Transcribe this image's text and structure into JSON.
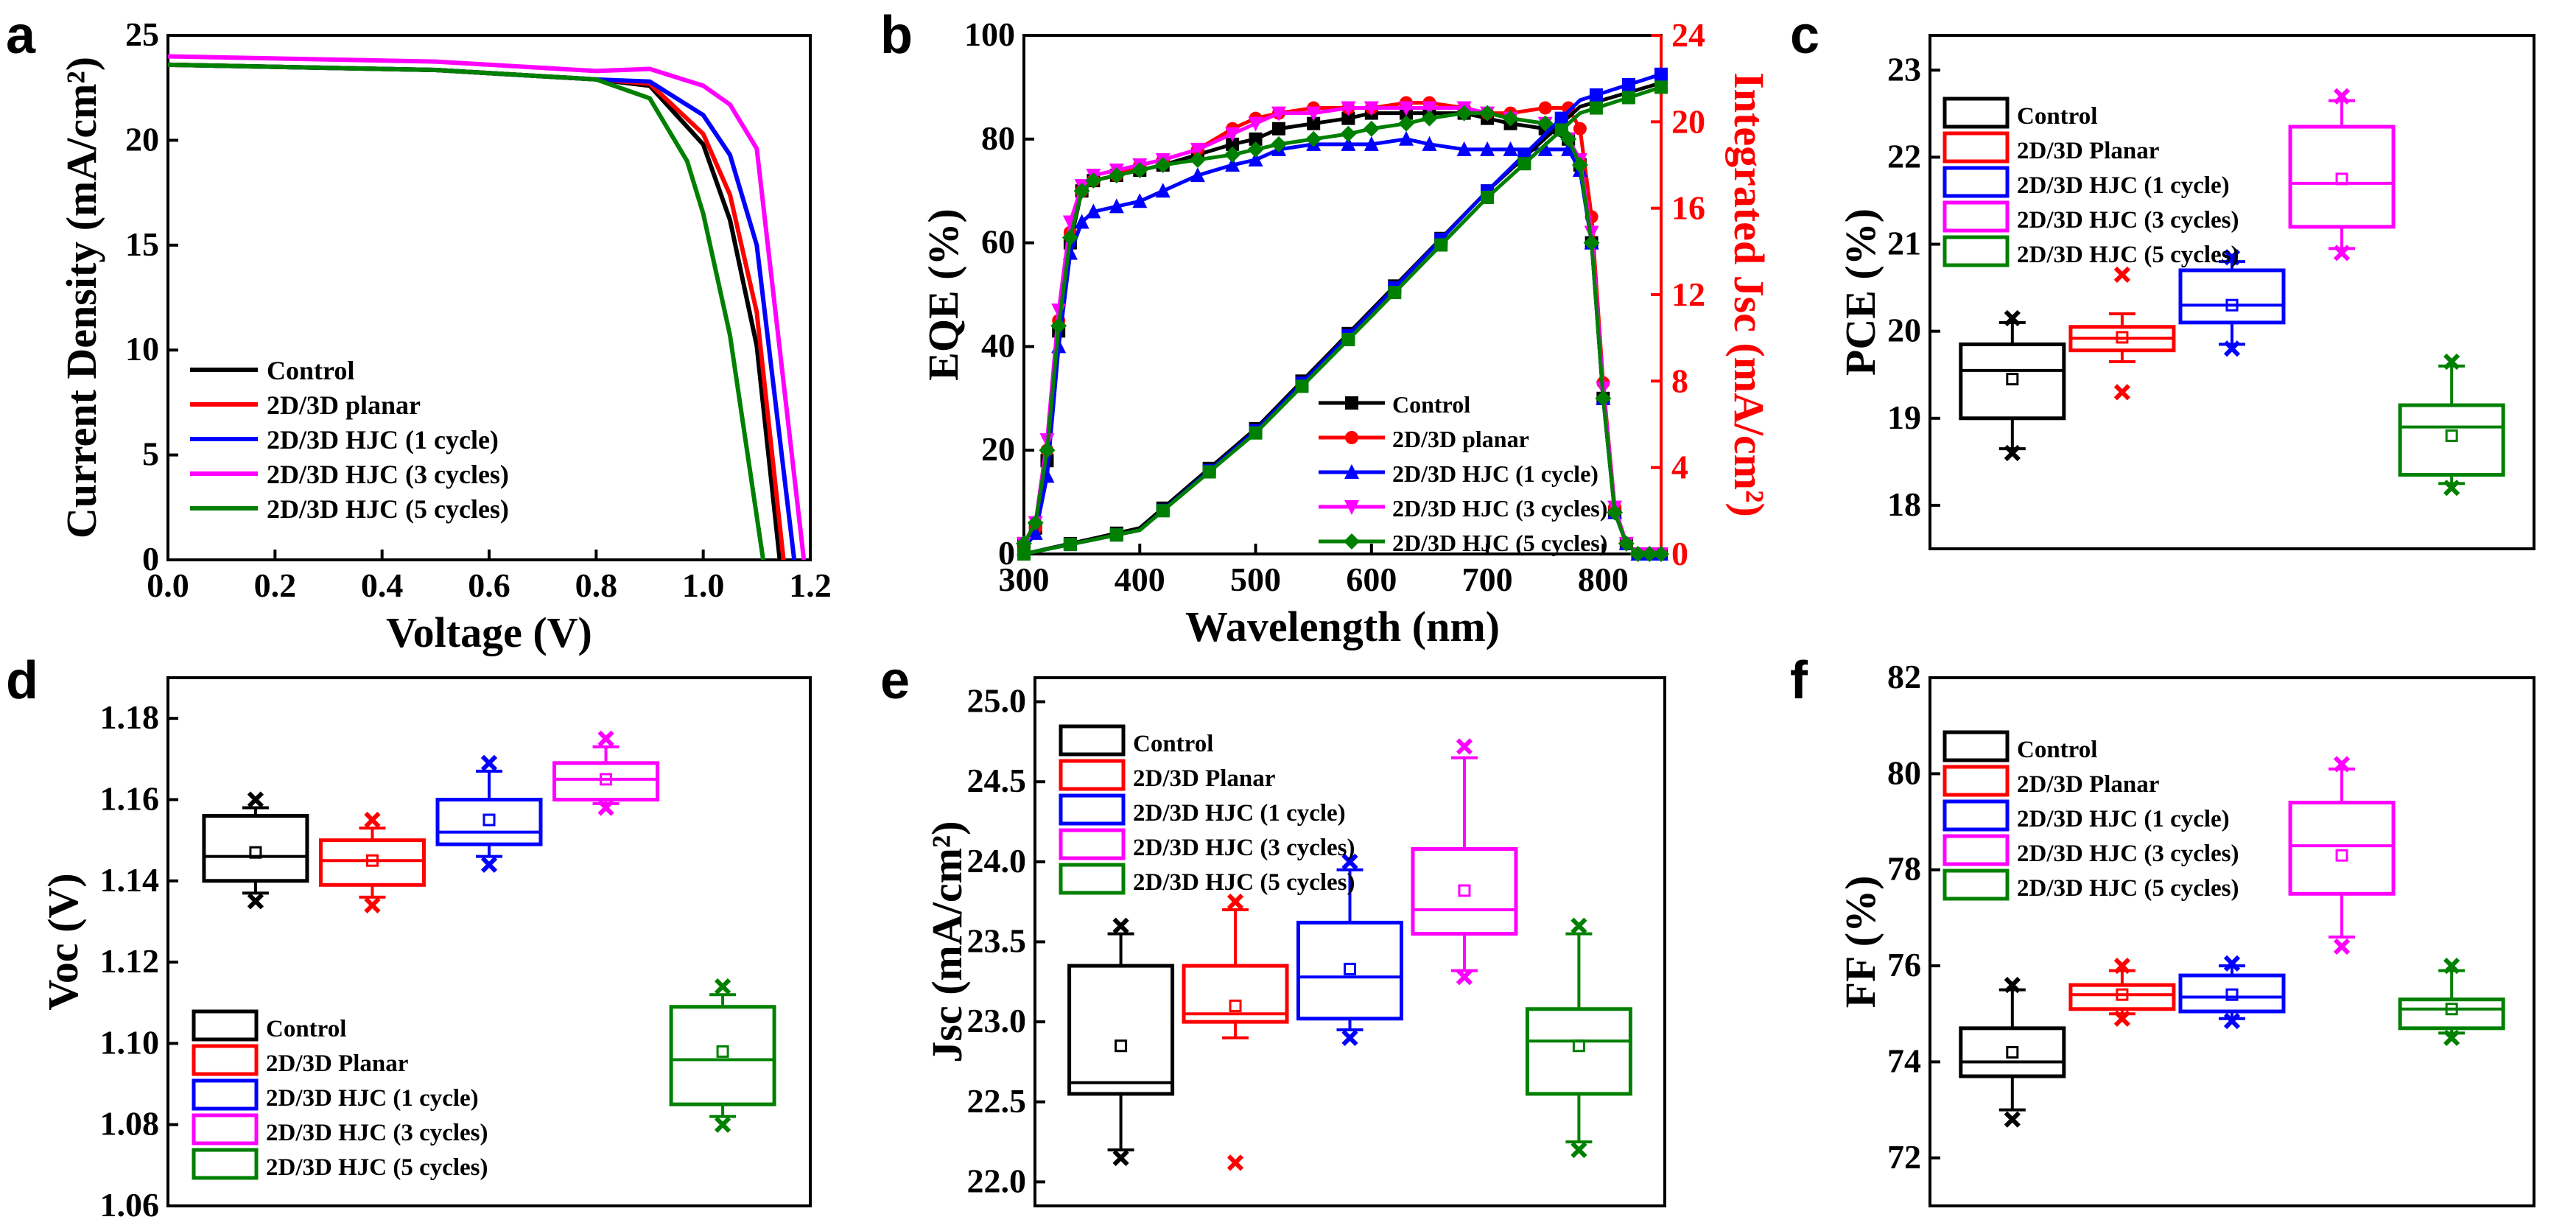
{
  "colors": {
    "Control": "#000000",
    "2D/3D planar": "#ff0000",
    "2D/3D HJC (1 cycle)": "#0000ff",
    "2D/3D HJC (3 cycles)": "#ff00ff",
    "2D/3D HJC (5 cycles)": "#008000",
    "integrated_axis": "#ff0000"
  },
  "chart_data": [
    {
      "panel": "a",
      "type": "line",
      "xlabel": "Voltage (V)",
      "ylabel": "Current Density (mA/cm²)",
      "xlim": [
        0,
        1.2
      ],
      "ylim": [
        0,
        25
      ],
      "xticks": [
        "0.0",
        "0.2",
        "0.4",
        "0.6",
        "0.8",
        "1.0",
        "1.2"
      ],
      "yticks": [
        "0",
        "5",
        "10",
        "15",
        "20",
        "25"
      ],
      "legend": [
        "Control",
        "2D/3D planar",
        "2D/3D HJC (1 cycle)",
        "2D/3D HJC (3 cycles)",
        "2D/3D HJC (5 cycles)"
      ],
      "series": [
        {
          "name": "Control",
          "jsc": 23.6,
          "voc": 1.143,
          "knee": [
            [
              0.9,
              22.6
            ],
            [
              1.0,
              19.8
            ],
            [
              1.05,
              16.2
            ],
            [
              1.1,
              10.2
            ]
          ]
        },
        {
          "name": "2D/3D planar",
          "jsc": 23.6,
          "voc": 1.15,
          "knee": [
            [
              0.9,
              22.7
            ],
            [
              1.0,
              20.3
            ],
            [
              1.05,
              17.4
            ],
            [
              1.1,
              11.8
            ]
          ]
        },
        {
          "name": "2D/3D HJC (1 cycle)",
          "jsc": 23.6,
          "voc": 1.17,
          "knee": [
            [
              0.9,
              22.8
            ],
            [
              1.0,
              21.2
            ],
            [
              1.05,
              19.3
            ],
            [
              1.1,
              15.0
            ]
          ]
        },
        {
          "name": "2D/3D HJC (3 cycles)",
          "jsc": 24.0,
          "voc": 1.188,
          "knee": [
            [
              0.9,
              23.4
            ],
            [
              1.0,
              22.6
            ],
            [
              1.05,
              21.7
            ],
            [
              1.1,
              19.6
            ]
          ]
        },
        {
          "name": "2D/3D HJC (5 cycles)",
          "jsc": 23.6,
          "voc": 1.112,
          "knee": [
            [
              0.9,
              22.0
            ],
            [
              0.97,
              19.0
            ],
            [
              1.0,
              16.5
            ],
            [
              1.05,
              10.7
            ]
          ]
        }
      ]
    },
    {
      "panel": "b",
      "type": "line",
      "xlabel": "Wavelength (nm)",
      "ylabel": "EQE (%)",
      "y2label": "Integrated Jsc (mA/cm²)",
      "xlim": [
        300,
        850
      ],
      "ylim": [
        0,
        100
      ],
      "y2lim": [
        0,
        24
      ],
      "xticks": [
        "300",
        "400",
        "500",
        "600",
        "700",
        "800"
      ],
      "yticks": [
        "0",
        "20",
        "40",
        "60",
        "80",
        "100"
      ],
      "y2ticks": [
        "0",
        "4",
        "8",
        "12",
        "16",
        "20",
        "24"
      ],
      "legend": [
        "Control",
        "2D/3D planar",
        "2D/3D HJC (1 cycle)",
        "2D/3D HJC (3 cycles)",
        "2D/3D HJC (5 cycles)"
      ],
      "x": [
        300,
        310,
        320,
        330,
        340,
        350,
        360,
        380,
        400,
        420,
        450,
        480,
        500,
        520,
        550,
        580,
        600,
        630,
        650,
        680,
        700,
        720,
        750,
        770,
        780,
        790,
        800,
        810,
        820,
        830,
        840,
        850
      ],
      "series": [
        {
          "name": "Control",
          "eqe": [
            2,
            5,
            18,
            43,
            60,
            70,
            72,
            73,
            74,
            75,
            77,
            79,
            80,
            82,
            83,
            84,
            85,
            85,
            85,
            85,
            84,
            83,
            82,
            80,
            75,
            60,
            30,
            8,
            2,
            0,
            0,
            0
          ]
        },
        {
          "name": "2D/3D planar",
          "eqe": [
            2,
            5,
            20,
            45,
            62,
            70,
            72,
            73,
            75,
            76,
            78,
            82,
            84,
            85,
            86,
            86,
            86,
            87,
            87,
            86,
            85,
            85,
            86,
            86,
            82,
            65,
            33,
            9,
            2,
            0,
            0,
            0
          ]
        },
        {
          "name": "2D/3D HJC (1 cycle)",
          "eqe": [
            1,
            4,
            15,
            40,
            58,
            64,
            66,
            67,
            68,
            70,
            73,
            75,
            76,
            78,
            79,
            79,
            79,
            80,
            79,
            78,
            78,
            78,
            78,
            78,
            74,
            60,
            30,
            8,
            2,
            0,
            0,
            0
          ]
        },
        {
          "name": "2D/3D HJC (3 cycles)",
          "eqe": [
            2,
            6,
            22,
            47,
            64,
            71,
            73,
            74,
            75,
            76,
            78,
            81,
            83,
            85,
            85,
            86,
            86,
            86,
            86,
            86,
            85,
            84,
            83,
            80,
            76,
            62,
            32,
            9,
            2,
            0,
            0,
            0
          ]
        },
        {
          "name": "2D/3D HJC (5 cycles)",
          "eqe": [
            2,
            6,
            20,
            44,
            61,
            70,
            72,
            73,
            74,
            75,
            76,
            77,
            78,
            79,
            80,
            81,
            82,
            83,
            84,
            85,
            85,
            84,
            83,
            80,
            75,
            60,
            30,
            8,
            2,
            0,
            0,
            0
          ]
        }
      ],
      "integrated": [
        {
          "name": "Control",
          "x": [
            300,
            400,
            500,
            600,
            700,
            780,
            850
          ],
          "jsc": [
            0,
            1.2,
            5.8,
            11.3,
            16.8,
            20.7,
            21.8
          ]
        },
        {
          "name": "2D/3D HJC (1 cycle)",
          "x": [
            300,
            400,
            500,
            600,
            700,
            780,
            850
          ],
          "jsc": [
            0,
            1.1,
            5.7,
            11.2,
            16.8,
            21.0,
            22.2
          ]
        },
        {
          "name": "2D/3D HJC (5 cycles)",
          "x": [
            300,
            400,
            500,
            600,
            700,
            780,
            850
          ],
          "jsc": [
            0,
            1.1,
            5.6,
            11.0,
            16.5,
            20.4,
            21.6
          ]
        }
      ]
    },
    {
      "panel": "c",
      "type": "box",
      "ylabel": "PCE (%)",
      "ylim": [
        17.5,
        23.4
      ],
      "yticks": [
        "18",
        "19",
        "20",
        "21",
        "22",
        "23"
      ],
      "legend": [
        "Control",
        "2D/3D Planar",
        "2D/3D HJC (1 cycle)",
        "2D/3D HJC (3 cycles)",
        "2D/3D HJC (5 cycles)"
      ],
      "boxes": [
        {
          "name": "Control",
          "q1": 19.0,
          "median": 19.55,
          "q3": 19.85,
          "mean": 19.45,
          "wlo": 18.65,
          "whi": 20.1,
          "outliers": [
            18.6,
            20.15
          ]
        },
        {
          "name": "2D/3D Planar",
          "q1": 19.78,
          "median": 19.92,
          "q3": 20.05,
          "mean": 19.93,
          "wlo": 19.65,
          "whi": 20.2,
          "outliers": [
            19.3,
            20.65
          ]
        },
        {
          "name": "2D/3D HJC (1 cycle)",
          "q1": 20.1,
          "median": 20.3,
          "q3": 20.7,
          "mean": 20.3,
          "wlo": 19.85,
          "whi": 20.8,
          "outliers": [
            19.8,
            20.85
          ]
        },
        {
          "name": "2D/3D HJC (3 cycles)",
          "q1": 21.2,
          "median": 21.7,
          "q3": 22.35,
          "mean": 21.75,
          "wlo": 20.95,
          "whi": 22.65,
          "outliers": [
            20.9,
            22.7
          ]
        },
        {
          "name": "2D/3D HJC (5 cycles)",
          "q1": 18.35,
          "median": 18.9,
          "q3": 19.15,
          "mean": 18.8,
          "wlo": 18.25,
          "whi": 19.6,
          "outliers": [
            18.2,
            19.65
          ]
        }
      ]
    },
    {
      "panel": "d",
      "type": "box",
      "ylabel": "Voc (V)",
      "ylim": [
        1.06,
        1.19
      ],
      "yticks": [
        "1.06",
        "1.08",
        "1.10",
        "1.12",
        "1.14",
        "1.16",
        "1.18"
      ],
      "legend": [
        "Control",
        "2D/3D Planar",
        "2D/3D HJC (1 cycle)",
        "2D/3D HJC (3 cycles)",
        "2D/3D HJC (5 cycles)"
      ],
      "boxes": [
        {
          "name": "Control",
          "q1": 1.14,
          "median": 1.146,
          "q3": 1.156,
          "mean": 1.147,
          "wlo": 1.137,
          "whi": 1.158,
          "outliers": [
            1.135,
            1.16
          ]
        },
        {
          "name": "2D/3D Planar",
          "q1": 1.139,
          "median": 1.145,
          "q3": 1.15,
          "mean": 1.145,
          "wlo": 1.136,
          "whi": 1.153,
          "outliers": [
            1.134,
            1.155
          ]
        },
        {
          "name": "2D/3D HJC (1 cycle)",
          "q1": 1.149,
          "median": 1.152,
          "q3": 1.16,
          "mean": 1.155,
          "wlo": 1.146,
          "whi": 1.167,
          "outliers": [
            1.144,
            1.169
          ]
        },
        {
          "name": "2D/3D HJC (3 cycles)",
          "q1": 1.16,
          "median": 1.165,
          "q3": 1.169,
          "mean": 1.165,
          "wlo": 1.159,
          "whi": 1.173,
          "outliers": [
            1.158,
            1.175
          ]
        },
        {
          "name": "2D/3D HJC (5 cycles)",
          "q1": 1.085,
          "median": 1.096,
          "q3": 1.109,
          "mean": 1.098,
          "wlo": 1.082,
          "whi": 1.112,
          "outliers": [
            1.08,
            1.114
          ]
        }
      ]
    },
    {
      "panel": "e",
      "type": "box",
      "ylabel": "Jsc (mA/cm²)",
      "ylim": [
        21.85,
        25.15
      ],
      "yticks": [
        "22.0",
        "22.5",
        "23.0",
        "23.5",
        "24.0",
        "24.5",
        "25.0"
      ],
      "legend": [
        "Control",
        "2D/3D Planar",
        "2D/3D HJC (1 cycle)",
        "2D/3D HJC (3 cycles)",
        "2D/3D HJC (5 cycles)"
      ],
      "boxes": [
        {
          "name": "Control",
          "q1": 22.55,
          "median": 22.62,
          "q3": 23.35,
          "mean": 22.85,
          "wlo": 22.2,
          "whi": 23.55,
          "outliers": [
            22.15,
            23.6
          ]
        },
        {
          "name": "2D/3D Planar",
          "q1": 23.0,
          "median": 23.05,
          "q3": 23.35,
          "mean": 23.1,
          "wlo": 22.9,
          "whi": 23.7,
          "outliers": [
            22.12,
            23.75
          ]
        },
        {
          "name": "2D/3D HJC (1 cycle)",
          "q1": 23.02,
          "median": 23.28,
          "q3": 23.62,
          "mean": 23.33,
          "wlo": 22.95,
          "whi": 23.95,
          "outliers": [
            22.9,
            24.0
          ]
        },
        {
          "name": "2D/3D HJC (3 cycles)",
          "q1": 23.55,
          "median": 23.7,
          "q3": 24.08,
          "mean": 23.82,
          "wlo": 23.32,
          "whi": 24.65,
          "outliers": [
            23.28,
            24.72
          ]
        },
        {
          "name": "2D/3D HJC (5 cycles)",
          "q1": 22.55,
          "median": 22.88,
          "q3": 23.08,
          "mean": 22.85,
          "wlo": 22.25,
          "whi": 23.55,
          "outliers": [
            22.2,
            23.6
          ]
        }
      ]
    },
    {
      "panel": "f",
      "type": "box",
      "ylabel": "FF (%)",
      "ylim": [
        71,
        82
      ],
      "yticks": [
        "72",
        "74",
        "76",
        "78",
        "80",
        "82"
      ],
      "legend": [
        "Control",
        "2D/3D Planar",
        "2D/3D HJC (1 cycle)",
        "2D/3D HJC (3 cycles)",
        "2D/3D HJC (5 cycles)"
      ],
      "boxes": [
        {
          "name": "Control",
          "q1": 73.7,
          "median": 74.0,
          "q3": 74.7,
          "mean": 74.2,
          "wlo": 73.0,
          "whi": 75.5,
          "outliers": [
            72.8,
            75.6
          ]
        },
        {
          "name": "2D/3D Planar",
          "q1": 75.1,
          "median": 75.4,
          "q3": 75.6,
          "mean": 75.4,
          "wlo": 75.0,
          "whi": 75.9,
          "outliers": [
            74.9,
            76.0
          ]
        },
        {
          "name": "2D/3D HJC (1 cycle)",
          "q1": 75.05,
          "median": 75.35,
          "q3": 75.8,
          "mean": 75.4,
          "wlo": 74.9,
          "whi": 76.0,
          "outliers": [
            74.85,
            76.05
          ]
        },
        {
          "name": "2D/3D HJC (3 cycles)",
          "q1": 77.5,
          "median": 78.5,
          "q3": 79.4,
          "mean": 78.3,
          "wlo": 76.6,
          "whi": 80.1,
          "outliers": [
            76.4,
            80.2
          ]
        },
        {
          "name": "2D/3D HJC (5 cycles)",
          "q1": 74.7,
          "median": 75.1,
          "q3": 75.3,
          "mean": 75.1,
          "wlo": 74.6,
          "whi": 75.9,
          "outliers": [
            74.5,
            76.0
          ]
        }
      ]
    }
  ]
}
